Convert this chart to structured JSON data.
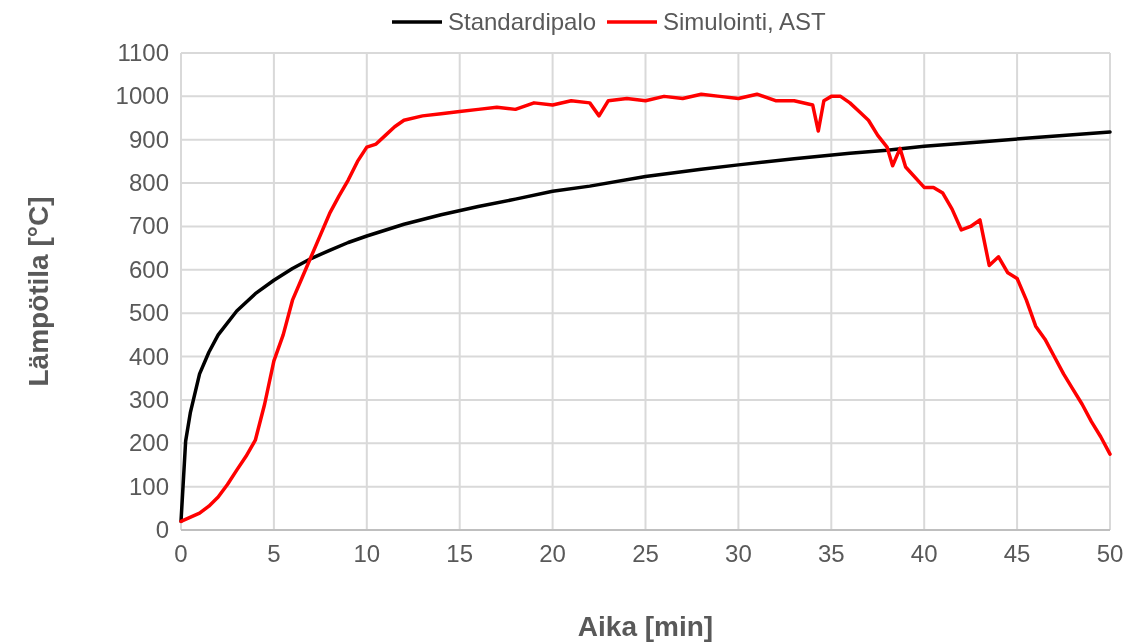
{
  "chart_data": {
    "type": "line",
    "xlabel": "Aika [min]",
    "ylabel": "Lämpötila [°C]",
    "xlim": [
      0,
      50
    ],
    "xticks": [
      0,
      5,
      10,
      15,
      20,
      25,
      30,
      35,
      40,
      45,
      50
    ],
    "ylim": [
      0,
      1100
    ],
    "yticks": [
      0,
      100,
      200,
      300,
      400,
      500,
      600,
      700,
      800,
      900,
      1000,
      1100
    ],
    "grid": true,
    "legend": "top",
    "marker": "none",
    "line_style": "solid",
    "series": [
      {
        "name": "Standardipalo",
        "color": "#000000",
        "x": [
          0,
          0.25,
          0.5,
          1,
          1.5,
          2,
          3,
          4,
          5,
          6,
          7,
          8,
          9,
          10,
          12,
          14,
          16,
          18,
          20,
          22,
          25,
          28,
          30,
          33,
          36,
          38,
          40,
          43,
          46,
          50
        ],
        "values": [
          20,
          205,
          270,
          360,
          410,
          450,
          505,
          545,
          576,
          603,
          626,
          645,
          663,
          678,
          705,
          727,
          746,
          763,
          781,
          793,
          815,
          832,
          842,
          856,
          869,
          876,
          885,
          895,
          905,
          918
        ]
      },
      {
        "name": "Simulointi, AST",
        "color": "#ff0000",
        "x": [
          0,
          1,
          1.5,
          2,
          2.5,
          3,
          3.5,
          4,
          4.5,
          5,
          5.5,
          6,
          6.5,
          7,
          7.5,
          8,
          8.5,
          9,
          9.5,
          10,
          10.5,
          11,
          11.5,
          12,
          13,
          14,
          15,
          16,
          17,
          18,
          19,
          20,
          21,
          22,
          22.5,
          23,
          24,
          25,
          26,
          27,
          28,
          29,
          30,
          31,
          32,
          33,
          34,
          34.3,
          34.6,
          35,
          35.5,
          36,
          36.5,
          37,
          37.5,
          38,
          38.3,
          38.7,
          39,
          40,
          40.5,
          41,
          41.5,
          42,
          42.5,
          43,
          43.5,
          44,
          44.5,
          45,
          45.5,
          46,
          46.5,
          47,
          47.5,
          48,
          48.5,
          49,
          49.5,
          50
        ],
        "values": [
          20,
          39,
          55,
          76,
          105,
          138,
          170,
          207,
          290,
          390,
          450,
          530,
          580,
          630,
          680,
          730,
          770,
          807,
          850,
          883,
          890,
          910,
          930,
          945,
          955,
          960,
          965,
          970,
          975,
          970,
          985,
          980,
          990,
          985,
          955,
          990,
          995,
          990,
          1000,
          995,
          1005,
          1000,
          995,
          1005,
          990,
          990,
          980,
          920,
          990,
          1000,
          1000,
          985,
          965,
          945,
          910,
          883,
          840,
          880,
          837,
          790,
          790,
          777,
          740,
          692,
          700,
          715,
          610,
          630,
          593,
          580,
          530,
          470,
          440,
          400,
          360,
          325,
          290,
          250,
          215,
          175
        ]
      }
    ]
  }
}
